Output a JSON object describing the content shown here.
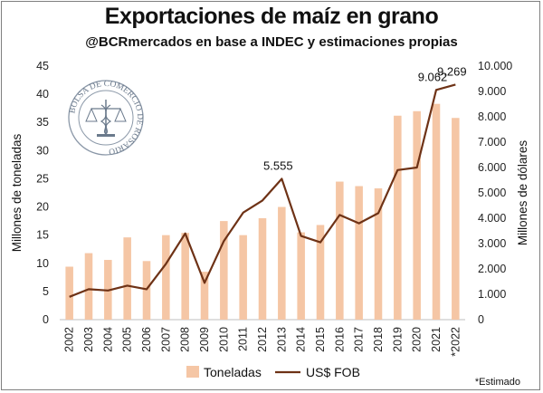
{
  "chart_data": {
    "type": "bar",
    "title": "Exportaciones de maíz en grano",
    "subtitle": "@BCRmercados en base a INDEC y estimaciones propias",
    "ylabel_left": "Millones de toneladas",
    "ylabel_right": "Millones de dólares",
    "categories": [
      "2002",
      "2003",
      "2004",
      "2005",
      "2006",
      "2007",
      "2008",
      "2009",
      "2010",
      "2011",
      "2012",
      "2013",
      "2014",
      "2015",
      "2016",
      "2017",
      "2018",
      "2019",
      "2020",
      "2021",
      "*2022"
    ],
    "y_left_ticks": [
      "0",
      "5",
      "10",
      "15",
      "20",
      "25",
      "30",
      "35",
      "40",
      "45"
    ],
    "y_right_ticks": [
      "0",
      "1.000",
      "2.000",
      "3.000",
      "4.000",
      "5.000",
      "6.000",
      "7.000",
      "8.000",
      "9.000",
      "10.000"
    ],
    "ylim_left": [
      0,
      45
    ],
    "ylim_right": [
      0,
      10000
    ],
    "series": [
      {
        "name": "Toneladas",
        "type": "bar",
        "axis": "left",
        "color": "#f5c6a5",
        "values": [
          9.4,
          11.8,
          10.6,
          14.6,
          10.4,
          15.0,
          15.4,
          8.5,
          17.5,
          15.0,
          18.0,
          20.0,
          15.5,
          16.8,
          24.5,
          23.7,
          23.3,
          36.2,
          37.0,
          38.3,
          35.8
        ]
      },
      {
        "name": "US$ FOB",
        "type": "line",
        "axis": "right",
        "color": "#6e3216",
        "values": [
          900,
          1200,
          1150,
          1340,
          1200,
          2200,
          3400,
          1450,
          3100,
          4220,
          4700,
          5555,
          3300,
          3050,
          4130,
          3800,
          4200,
          5900,
          6000,
          9062,
          9269
        ]
      }
    ],
    "annotations": [
      {
        "category": "2013",
        "text": "5.555"
      },
      {
        "category": "2021",
        "text": "9.062"
      },
      {
        "category": "*2022",
        "text": "9.269"
      }
    ],
    "legend_position": "bottom",
    "grid": false,
    "footnote": "*Estimado"
  },
  "watermark": {
    "text": "BOLSA DE COMERCIO DE ROSARIO",
    "color": "#6b7a8c"
  }
}
